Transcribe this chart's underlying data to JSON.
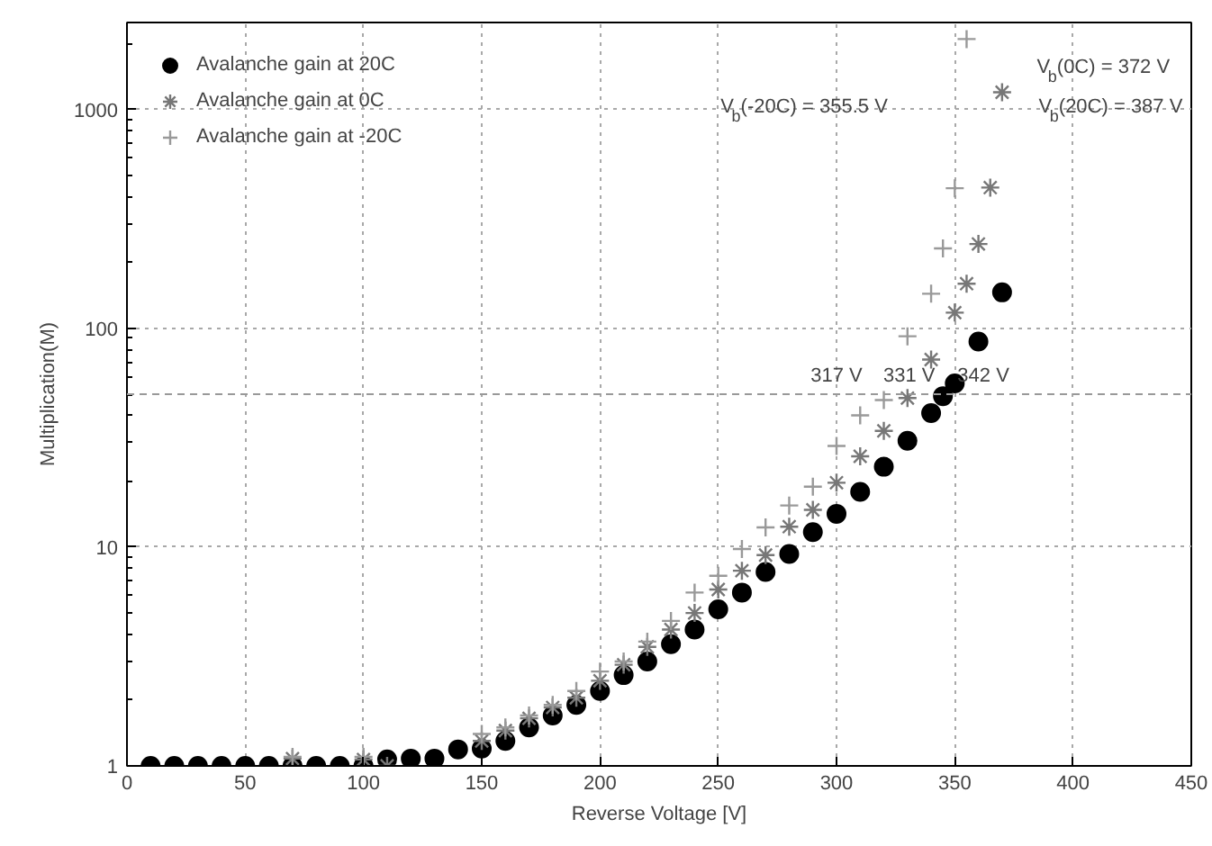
{
  "chart_data": {
    "type": "scatter",
    "xlabel": "Reverse Voltage [V]",
    "ylabel": "Multiplication(M)",
    "xlim": [
      0,
      450
    ],
    "xticks": [
      0,
      50,
      100,
      150,
      200,
      250,
      300,
      350,
      400,
      450
    ],
    "ylim": [
      1,
      2500
    ],
    "yticks": [
      1,
      10,
      100,
      1000
    ],
    "log": "y",
    "grid": true,
    "legend": "top left",
    "series": [
      {
        "name": "Avalanche gain at 20C",
        "color": "#000000",
        "marker": "circle",
        "x": [
          10,
          20,
          30,
          40,
          50,
          60,
          70,
          80,
          90,
          100,
          110,
          120,
          130,
          140,
          150,
          160,
          170,
          180,
          190,
          200,
          210,
          220,
          230,
          240,
          250,
          260,
          270,
          280,
          290,
          300,
          310,
          320,
          330,
          340,
          345,
          350,
          360,
          370
        ],
        "values": [
          1,
          1,
          1,
          1,
          1,
          1,
          1,
          1,
          1,
          1,
          1.07,
          1.08,
          1.08,
          1.19,
          1.2,
          1.3,
          1.5,
          1.7,
          1.9,
          2.2,
          2.6,
          3.0,
          3.6,
          4.2,
          5.2,
          6.2,
          7.7,
          9.3,
          11.7,
          14.2,
          17.9,
          23.3,
          30.6,
          41,
          49,
          56,
          87,
          146
        ]
      },
      {
        "name": "Avalanche gain at 0C",
        "color": "#777777",
        "marker": "cross",
        "x": [
          70,
          100,
          110,
          150,
          160,
          170,
          180,
          190,
          200,
          210,
          220,
          230,
          240,
          250,
          260,
          270,
          280,
          290,
          300,
          310,
          320,
          330,
          340,
          350,
          355,
          360,
          365,
          370
        ],
        "values": [
          1.08,
          1.07,
          1.0,
          1.3,
          1.45,
          1.65,
          1.85,
          2.05,
          2.45,
          2.9,
          3.5,
          4.2,
          5.0,
          6.4,
          7.8,
          9.2,
          12.4,
          14.8,
          19.7,
          26,
          34,
          48,
          72,
          118,
          160,
          243,
          440,
          1200
        ]
      },
      {
        "name": "Avalanche gain at -20C",
        "color": "#999999",
        "marker": "cross",
        "x": [
          70,
          100,
          150,
          160,
          170,
          180,
          190,
          200,
          210,
          220,
          230,
          240,
          250,
          260,
          270,
          280,
          290,
          300,
          310,
          320,
          330,
          340,
          345,
          350,
          355
        ],
        "values": [
          1.1,
          1.1,
          1.4,
          1.5,
          1.7,
          1.9,
          2.2,
          2.7,
          3.0,
          3.7,
          4.6,
          6.2,
          7.4,
          9.8,
          12.3,
          15.5,
          18.9,
          29,
          40,
          47,
          92,
          144,
          232,
          437,
          2100
        ]
      }
    ],
    "ref_lines": [
      {
        "axis": "y",
        "value": 50,
        "color": "#999999",
        "line_style": "dashed"
      }
    ],
    "annotations": [
      {
        "text": "317 V",
        "x": 317,
        "y": 50
      },
      {
        "text": "331 V",
        "x": 331,
        "y": 50
      },
      {
        "text": "342 V",
        "x": 342,
        "y": 50
      },
      "V$_{b}$(0C) = 372 V",
      "V$_{b}$(-20C) = 355.5 V",
      "V$_{b}$(20C) = 387 V"
    ]
  }
}
